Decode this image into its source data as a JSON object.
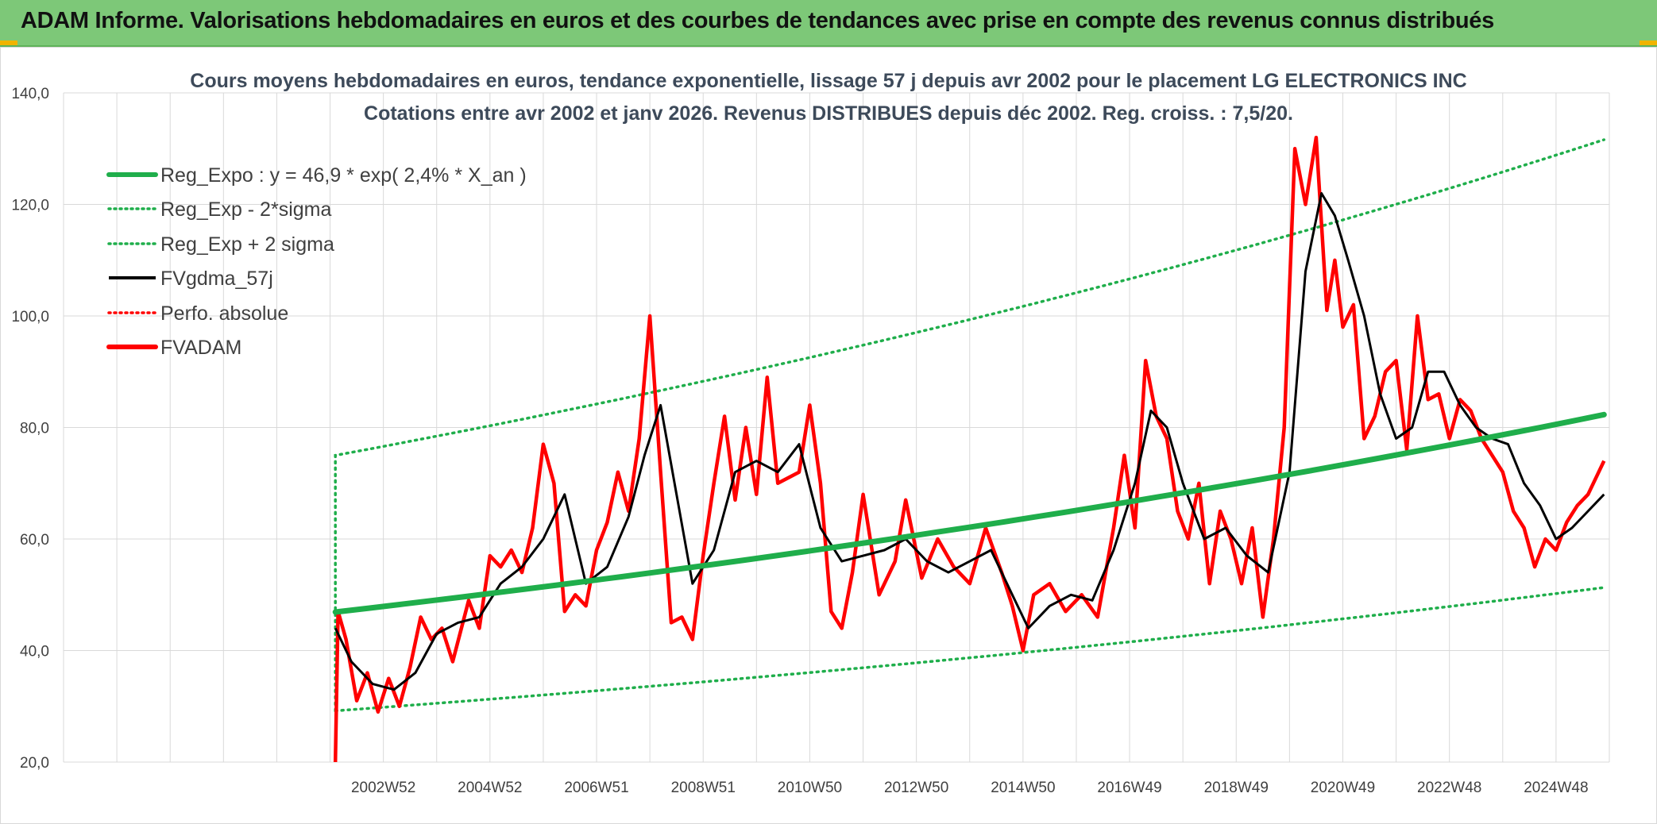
{
  "banner": {
    "title": "ADAM Informe. Valorisations hebdomadaires en euros et des courbes de tendances avec prise en compte des revenus connus distribués"
  },
  "colors": {
    "banner_bg": "#7dc878",
    "accent": "#f0b400",
    "trend_green": "#1fae4b",
    "price_red": "#ff0000",
    "smoothed_black": "#000000",
    "grid": "#d9d9d9"
  },
  "chart_data": {
    "type": "line",
    "title": "Cours moyens hebdomadaires en euros, tendance exponentielle, lissage 57 j depuis avr 2002 pour le placement LG ELECTRONICS INC",
    "subtitle": "Cotations entre avr 2002 et janv 2026. Revenus DISTRIBUES depuis déc 2002. Reg. croiss. : 7,5/20.",
    "xlabel": "",
    "ylabel": "",
    "ylim": [
      20,
      140
    ],
    "yticks": [
      "140,0",
      "120,0",
      "100,0",
      "80,0",
      "60,0",
      "40,0",
      "20,0"
    ],
    "xticks": [
      "2002W52",
      "2004W52",
      "2006W51",
      "2008W51",
      "2010W50",
      "2012W50",
      "2014W50",
      "2016W49",
      "2018W49",
      "2020W49",
      "2022W48",
      "2024W48"
    ],
    "xlim": [
      1997.2,
      2026.2
    ],
    "grid": true,
    "legend_position": "top-left",
    "legend": [
      {
        "label": "Reg_Expo : y = 46,9 * exp( 2,4% *  X_an )",
        "color": "#1fae4b",
        "style": "solid-thick"
      },
      {
        "label": "Reg_Exp - 2*sigma",
        "color": "#1fae4b",
        "style": "dotted"
      },
      {
        "label": "Reg_Exp + 2 sigma",
        "color": "#1fae4b",
        "style": "dotted"
      },
      {
        "label": "FVgdma_57j",
        "color": "#000000",
        "style": "solid"
      },
      {
        "label": "Perfo. absolue",
        "color": "#ff0000",
        "style": "dotted"
      },
      {
        "label": "FVADAM",
        "color": "#ff0000",
        "style": "solid-thick"
      }
    ],
    "series": [
      {
        "name": "Reg_Expo : y = 46,9 * exp( 2,4% *  X_an )",
        "x": [
          2002.3,
          2026.1
        ],
        "y": [
          46.9,
          82.3
        ]
      },
      {
        "name": "Reg_Exp - 2*sigma",
        "x": [
          2002.3,
          2026.1
        ],
        "y": [
          29.2,
          51.3
        ]
      },
      {
        "name": "Reg_Exp + 2 sigma",
        "x": [
          2002.3,
          2026.1
        ],
        "y": [
          75.0,
          131.6
        ]
      },
      {
        "name": "FVADAM",
        "x": [
          2002.3,
          2002.35,
          2002.5,
          2002.7,
          2002.9,
          2003.1,
          2003.3,
          2003.5,
          2003.7,
          2003.9,
          2004.1,
          2004.3,
          2004.5,
          2004.8,
          2005.0,
          2005.2,
          2005.4,
          2005.6,
          2005.8,
          2006.0,
          2006.2,
          2006.4,
          2006.6,
          2006.8,
          2007.0,
          2007.2,
          2007.4,
          2007.6,
          2007.8,
          2008.0,
          2008.2,
          2008.4,
          2008.6,
          2008.8,
          2009.0,
          2009.2,
          2009.4,
          2009.6,
          2009.8,
          2010.0,
          2010.2,
          2010.4,
          2010.6,
          2010.8,
          2011.0,
          2011.2,
          2011.4,
          2011.6,
          2011.8,
          2012.0,
          2012.2,
          2012.5,
          2012.8,
          2013.0,
          2013.3,
          2013.6,
          2013.9,
          2014.2,
          2014.5,
          2014.8,
          2015.0,
          2015.2,
          2015.4,
          2015.7,
          2016.0,
          2016.3,
          2016.6,
          2016.9,
          2017.1,
          2017.3,
          2017.5,
          2017.7,
          2017.9,
          2018.1,
          2018.3,
          2018.5,
          2018.7,
          2018.9,
          2019.1,
          2019.3,
          2019.5,
          2019.7,
          2019.9,
          2020.1,
          2020.3,
          2020.5,
          2020.7,
          2020.9,
          2021.05,
          2021.2,
          2021.4,
          2021.6,
          2021.8,
          2022.0,
          2022.2,
          2022.4,
          2022.6,
          2022.8,
          2023.0,
          2023.2,
          2023.4,
          2023.6,
          2023.8,
          2024.0,
          2024.2,
          2024.4,
          2024.6,
          2024.8,
          2025.0,
          2025.2,
          2025.4,
          2025.6,
          2025.8,
          2026.0,
          2026.1
        ],
        "y": [
          20.0,
          47.0,
          42.0,
          31.0,
          36.0,
          29.0,
          35.0,
          30.0,
          37.0,
          46.0,
          42.0,
          44.0,
          38.0,
          49.0,
          44.0,
          57.0,
          55.0,
          58.0,
          54.0,
          62.0,
          77.0,
          70.0,
          47.0,
          50.0,
          48.0,
          58.0,
          63.0,
          72.0,
          65.0,
          78.0,
          100.0,
          72.0,
          45.0,
          46.0,
          42.0,
          57.0,
          70.0,
          82.0,
          67.0,
          80.0,
          68.0,
          89.0,
          70.0,
          71.0,
          72.0,
          84.0,
          70.0,
          47.0,
          44.0,
          54.0,
          68.0,
          50.0,
          56.0,
          67.0,
          53.0,
          60.0,
          55.0,
          52.0,
          62.0,
          54.0,
          48.0,
          40.0,
          50.0,
          52.0,
          47.0,
          50.0,
          46.0,
          62.0,
          75.0,
          62.0,
          92.0,
          82.0,
          78.0,
          65.0,
          60.0,
          70.0,
          52.0,
          65.0,
          60.0,
          52.0,
          62.0,
          46.0,
          60.0,
          80.0,
          130.0,
          120.0,
          132.0,
          101.0,
          110.0,
          98.0,
          102.0,
          78.0,
          82.0,
          90.0,
          92.0,
          76.0,
          100.0,
          85.0,
          86.0,
          78.0,
          85.0,
          83.0,
          78.0,
          75.0,
          72.0,
          65.0,
          62.0,
          55.0,
          60.0,
          58.0,
          63.0,
          66.0,
          68.0,
          72.0,
          74.0
        ]
      },
      {
        "name": "FVgdma_57j",
        "x": [
          2002.3,
          2002.6,
          2003.0,
          2003.4,
          2003.8,
          2004.2,
          2004.6,
          2005.0,
          2005.4,
          2005.8,
          2006.2,
          2006.6,
          2007.0,
          2007.4,
          2007.8,
          2008.1,
          2008.4,
          2008.7,
          2009.0,
          2009.4,
          2009.8,
          2010.2,
          2010.6,
          2011.0,
          2011.4,
          2011.8,
          2012.2,
          2012.6,
          2013.0,
          2013.4,
          2013.8,
          2014.2,
          2014.6,
          2015.0,
          2015.3,
          2015.7,
          2016.1,
          2016.5,
          2016.9,
          2017.3,
          2017.6,
          2017.9,
          2018.2,
          2018.6,
          2019.0,
          2019.4,
          2019.8,
          2020.2,
          2020.5,
          2020.8,
          2021.05,
          2021.3,
          2021.6,
          2021.9,
          2022.2,
          2022.5,
          2022.8,
          2023.1,
          2023.4,
          2023.7,
          2024.0,
          2024.3,
          2024.6,
          2024.9,
          2025.2,
          2025.5,
          2025.8,
          2026.1
        ],
        "y": [
          44.0,
          38.0,
          34.0,
          33.0,
          36.0,
          43.0,
          45.0,
          46.0,
          52.0,
          55.0,
          60.0,
          68.0,
          52.0,
          55.0,
          64.0,
          75.0,
          84.0,
          68.0,
          52.0,
          58.0,
          72.0,
          74.0,
          72.0,
          77.0,
          62.0,
          56.0,
          57.0,
          58.0,
          60.0,
          56.0,
          54.0,
          56.0,
          58.0,
          50.0,
          44.0,
          48.0,
          50.0,
          49.0,
          58.0,
          70.0,
          83.0,
          80.0,
          70.0,
          60.0,
          62.0,
          57.0,
          54.0,
          72.0,
          108.0,
          122.0,
          118.0,
          110.0,
          100.0,
          86.0,
          78.0,
          80.0,
          90.0,
          90.0,
          84.0,
          80.0,
          78.0,
          77.0,
          70.0,
          66.0,
          60.0,
          62.0,
          65.0,
          68.0
        ]
      }
    ]
  }
}
